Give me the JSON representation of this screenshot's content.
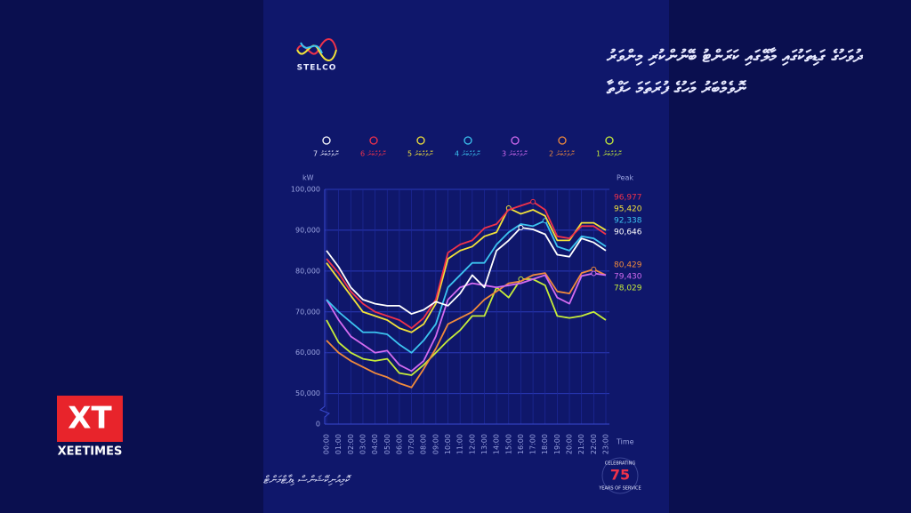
{
  "header": {
    "logo": "STELCO",
    "title_line1": "ދުވަހުގެ ގަޑިތަކުގައި މާލޭގައި ކަރަންޓު ބޭނުންކުރި މިންވަރު",
    "title_line2": "ނޮވެމްބަރު މަހުގެ ފުރަތަމަ ހަފްތާ"
  },
  "chart_data": {
    "type": "line",
    "y_unit_label": "kW",
    "peak_header": "Peak",
    "x_label": "Time",
    "categories": [
      "00:00",
      "01:00",
      "02:00",
      "03:00",
      "04:00",
      "05:00",
      "06:00",
      "07:00",
      "08:00",
      "09:00",
      "10:00",
      "11:00",
      "12:00",
      "13:00",
      "14:00",
      "15:00",
      "16:00",
      "17:00",
      "18:00",
      "19:00",
      "20:00",
      "21:00",
      "22:00",
      "23:00"
    ],
    "ylim": [
      0,
      100000
    ],
    "y_axis_break": [
      0,
      46000
    ],
    "yticks": [
      {
        "value": 0,
        "label": "0"
      },
      {
        "value": 50000,
        "label": "50,000"
      },
      {
        "value": 60000,
        "label": "60,000"
      },
      {
        "value": 70000,
        "label": "70,000"
      },
      {
        "value": 80000,
        "label": "80,000"
      },
      {
        "value": 90000,
        "label": "90,000"
      },
      {
        "value": 100000,
        "label": "100,000"
      }
    ],
    "grid": true,
    "series": [
      {
        "name": "1 ނޮވެމްބަރު",
        "color": "#c6ec3a",
        "values": [
          68000,
          62500,
          60000,
          58500,
          58000,
          58500,
          55000,
          54500,
          57000,
          60000,
          63000,
          65500,
          69000,
          69000,
          76000,
          73500,
          78029,
          78000,
          76500,
          69000,
          68500,
          69000,
          70000,
          68000
        ],
        "peak": {
          "value": 78029,
          "label": "78,029"
        }
      },
      {
        "name": "2 ނޮވެމްބަރު",
        "color": "#f08a3c",
        "values": [
          63000,
          60000,
          58000,
          56500,
          55000,
          54000,
          52500,
          51500,
          56000,
          61000,
          67000,
          68500,
          70000,
          73000,
          75000,
          77000,
          77500,
          79000,
          79500,
          75000,
          74500,
          79500,
          80429,
          79000
        ],
        "peak": {
          "value": 80429,
          "label": "80,429"
        }
      },
      {
        "name": "3 ނޮވެމްބަރު",
        "color": "#d36bf0",
        "values": [
          73000,
          68000,
          64000,
          62000,
          60000,
          60500,
          57000,
          55500,
          58000,
          64000,
          73000,
          76000,
          77000,
          76500,
          76000,
          76500,
          77000,
          78000,
          79000,
          73500,
          72000,
          78800,
          79430,
          79000
        ],
        "peak": {
          "value": 79430,
          "label": "79,430"
        }
      },
      {
        "name": "4 ނޮވެމްބަރު",
        "color": "#3cc4f0",
        "values": [
          73000,
          70000,
          67500,
          65000,
          65000,
          64500,
          62000,
          60000,
          63000,
          67000,
          76000,
          79000,
          82000,
          82000,
          86500,
          89500,
          91500,
          91000,
          92338,
          86000,
          85000,
          88500,
          88000,
          86000
        ],
        "peak": {
          "value": 92338,
          "label": "92,338"
        }
      },
      {
        "name": "5 ނޮވެމްބަރު",
        "color": "#f2e23a",
        "values": [
          82000,
          78000,
          74000,
          70000,
          69000,
          68000,
          66000,
          65000,
          67000,
          72000,
          83000,
          85000,
          86000,
          88500,
          89500,
          95420,
          94000,
          95000,
          93500,
          87500,
          87500,
          91800,
          91800,
          90000
        ],
        "peak": {
          "value": 95420,
          "label": "95,420"
        }
      },
      {
        "name": "6 ނޮވެމްބަރު",
        "color": "#f0324a",
        "values": [
          83000,
          79500,
          75000,
          72000,
          70000,
          69000,
          68000,
          66000,
          68500,
          73000,
          84500,
          86500,
          87500,
          90500,
          91500,
          95000,
          96000,
          96977,
          95000,
          88500,
          88000,
          91000,
          91000,
          89000
        ],
        "peak": {
          "value": 96977,
          "label": "96,977"
        }
      },
      {
        "name": "7 ނޮވެމްބަރު",
        "color": "#ffffff",
        "values": [
          85000,
          81000,
          76000,
          73000,
          72000,
          71500,
          71500,
          69500,
          70500,
          72500,
          71500,
          74500,
          79000,
          76000,
          85000,
          87500,
          90646,
          90200,
          89000,
          84000,
          83500,
          88000,
          87000,
          85000
        ],
        "peak": {
          "value": 90646,
          "label": "90,646"
        }
      }
    ]
  },
  "footer": {
    "credit": "ކޮމިއުނިކޭޝަންސް ޑިޕާޓްމަންޓް",
    "badge_top": "CELEBRATING",
    "badge_number": "75",
    "badge_bottom": "YEARS OF SERVICE"
  },
  "watermark": {
    "logo": "XT",
    "name": "XEETIMES"
  }
}
